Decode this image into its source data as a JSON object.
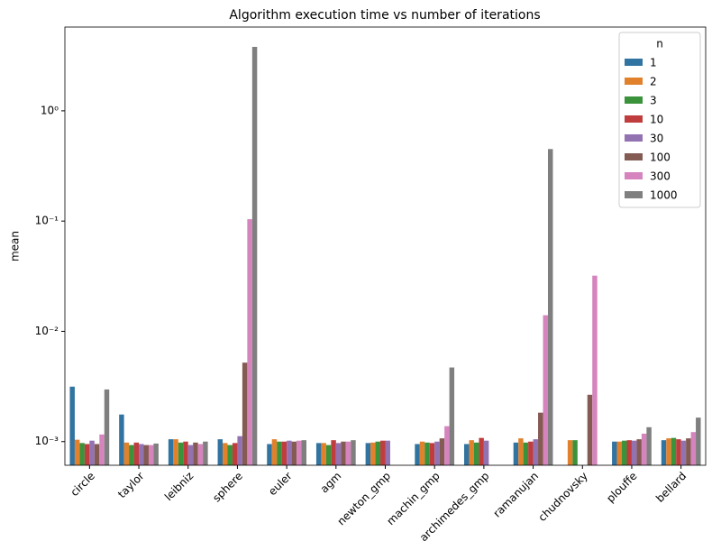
{
  "chart_data": {
    "type": "bar",
    "title": "Algorithm execution time vs number of iterations",
    "y_label": "mean",
    "log_y": true,
    "legend_title": "n",
    "legend_loc": "upper right",
    "categories": [
      "circle",
      "taylor",
      "leibniz",
      "sphere",
      "euler",
      "agm",
      "newton_gmp",
      "machin_gmp",
      "archimedes_gmp",
      "ramanujan",
      "chudnovsky",
      "plouffe",
      "bellard"
    ],
    "ylim": [
      0.00061,
      5.75
    ],
    "yticks": [
      {
        "value": 0.001,
        "label": "10⁻³"
      },
      {
        "value": 0.01,
        "label": "10⁻²"
      },
      {
        "value": 0.1,
        "label": "10⁻¹"
      },
      {
        "value": 1,
        "label": "10⁰"
      }
    ],
    "series": [
      {
        "name": "1",
        "color": "#3274a1",
        "values": [
          0.00315,
          0.00176,
          0.00105,
          0.00105,
          0.00095,
          0.00097,
          0.00097,
          0.00095,
          0.00095,
          0.00098,
          null,
          0.001,
          0.00103
        ]
      },
      {
        "name": "2",
        "color": "#e1812c",
        "values": [
          0.00104,
          0.00098,
          0.00105,
          0.00097,
          0.00105,
          0.00097,
          0.00098,
          0.001,
          0.00103,
          0.00107,
          0.00103,
          0.001,
          0.00107
        ]
      },
      {
        "name": "3",
        "color": "#3a923a",
        "values": [
          0.00097,
          0.00093,
          0.00098,
          0.00093,
          0.001,
          0.00093,
          0.001,
          0.00098,
          0.00098,
          0.00098,
          0.00103,
          0.00102,
          0.00108
        ]
      },
      {
        "name": "10",
        "color": "#c03d3e",
        "values": [
          0.00095,
          0.00098,
          0.001,
          0.00097,
          0.001,
          0.00103,
          0.00102,
          0.00097,
          0.00108,
          0.001,
          null,
          0.00103,
          0.00105
        ]
      },
      {
        "name": "30",
        "color": "#9372b2",
        "values": [
          0.00102,
          0.00095,
          0.00093,
          0.00112,
          0.00102,
          0.00097,
          0.00102,
          0.001,
          0.00102,
          0.00105,
          null,
          0.00102,
          0.00102
        ]
      },
      {
        "name": "100",
        "color": "#845b53",
        "values": [
          0.00095,
          0.00093,
          0.00098,
          0.0052,
          0.001,
          0.001,
          null,
          0.00107,
          null,
          0.00183,
          0.00266,
          0.00105,
          0.00107
        ]
      },
      {
        "name": "300",
        "color": "#d684bd",
        "values": [
          0.00116,
          0.00093,
          0.00095,
          0.104,
          0.00102,
          0.001,
          null,
          0.00138,
          null,
          0.014,
          0.032,
          0.00118,
          0.00122
        ]
      },
      {
        "name": "1000",
        "color": "#7f7f7f",
        "values": [
          0.00297,
          0.00096,
          0.001,
          3.8,
          0.00103,
          0.00103,
          null,
          0.0047,
          null,
          0.45,
          null,
          0.00135,
          0.00165
        ]
      }
    ]
  }
}
